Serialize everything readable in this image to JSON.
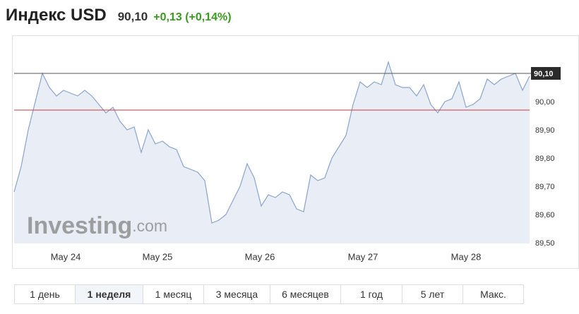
{
  "header": {
    "title": "Индекс USD",
    "price": "90,10",
    "change": "+0,13 (+0,14%)"
  },
  "watermark": {
    "brand": "Investing",
    "suffix": ".com"
  },
  "chart_data": {
    "type": "line",
    "values": [
      89.68,
      89.77,
      89.9,
      90.0,
      90.1,
      90.05,
      90.02,
      90.04,
      90.03,
      90.02,
      90.04,
      90.02,
      89.99,
      89.96,
      89.98,
      89.93,
      89.9,
      89.91,
      89.82,
      89.9,
      89.85,
      89.86,
      89.84,
      89.83,
      89.77,
      89.76,
      89.75,
      89.72,
      89.57,
      89.58,
      89.6,
      89.65,
      89.7,
      89.78,
      89.73,
      89.63,
      89.67,
      89.66,
      89.68,
      89.67,
      89.62,
      89.61,
      89.74,
      89.72,
      89.73,
      89.8,
      89.84,
      89.88,
      89.99,
      90.07,
      90.05,
      90.07,
      90.06,
      90.14,
      90.06,
      90.05,
      90.05,
      90.02,
      90.06,
      89.99,
      89.96,
      90.0,
      90.01,
      90.07,
      89.98,
      89.99,
      90.01,
      90.08,
      90.06,
      90.08,
      90.09,
      90.1,
      90.04,
      90.09
    ],
    "color": "#8aa4cc",
    "fill": "#e9eef6",
    "xticks": [
      {
        "value": 7.3,
        "label": "May 24"
      },
      {
        "value": 20.3,
        "label": "May 25"
      },
      {
        "value": 34.8,
        "label": "May 26"
      },
      {
        "value": 49.4,
        "label": "May 27"
      },
      {
        "value": 64,
        "label": "May 28"
      }
    ],
    "ylim": [
      89.5,
      90.21
    ],
    "yticks": [
      {
        "value": 89.5,
        "label": "89,50"
      },
      {
        "value": 89.6,
        "label": "89,60"
      },
      {
        "value": 89.7,
        "label": "89,70"
      },
      {
        "value": 89.8,
        "label": "89,80"
      },
      {
        "value": 89.9,
        "label": "89,90"
      },
      {
        "value": 90,
        "label": "90,00"
      }
    ],
    "current": {
      "value": 90.1,
      "label": "90,10"
    },
    "previous_close": 89.97,
    "grid": false
  },
  "periods": [
    "1 день",
    "1 неделя",
    "1 месяц",
    "3 месяца",
    "6 месяцев",
    "1 год",
    "5 лет",
    "Макс."
  ],
  "active_period": 1
}
